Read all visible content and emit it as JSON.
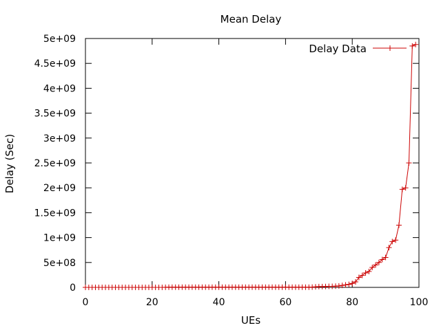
{
  "chart_data": {
    "type": "line",
    "title": "Mean Delay",
    "xlabel": "UEs",
    "ylabel": "Delay (Sec)",
    "xlim": [
      0,
      100
    ],
    "ylim": [
      0,
      5000000000
    ],
    "x_ticks": [
      0,
      20,
      40,
      60,
      80,
      100
    ],
    "x_tick_labels": [
      "0",
      "20",
      "40",
      "60",
      "80",
      "100"
    ],
    "y_ticks": [
      0,
      500000000,
      1000000000,
      1500000000,
      2000000000,
      2500000000,
      3000000000,
      3500000000,
      4000000000,
      4500000000,
      5000000000
    ],
    "y_tick_labels": [
      "0",
      "5e+08",
      "1e+09",
      "1.5e+09",
      "2e+09",
      "2.5e+09",
      "3e+09",
      "3.5e+09",
      "4e+09",
      "4.5e+09",
      "5e+09"
    ],
    "grid": false,
    "legend_position": "top-right",
    "series": [
      {
        "name": "Delay Data",
        "color": "#cc0000",
        "marker": "plus",
        "x": [
          0,
          1,
          2,
          3,
          4,
          5,
          6,
          7,
          8,
          9,
          10,
          11,
          12,
          13,
          14,
          15,
          16,
          17,
          18,
          19,
          20,
          21,
          22,
          23,
          24,
          25,
          26,
          27,
          28,
          29,
          30,
          31,
          32,
          33,
          34,
          35,
          36,
          37,
          38,
          39,
          40,
          41,
          42,
          43,
          44,
          45,
          46,
          47,
          48,
          49,
          50,
          51,
          52,
          53,
          54,
          55,
          56,
          57,
          58,
          59,
          60,
          61,
          62,
          63,
          64,
          65,
          66,
          67,
          68,
          69,
          70,
          71,
          72,
          73,
          74,
          75,
          76,
          77,
          78,
          79,
          80,
          81,
          82,
          83,
          84,
          85,
          86,
          87,
          88,
          89,
          90,
          91,
          92,
          93,
          94,
          95,
          96,
          97,
          98,
          99
        ],
        "values": [
          0,
          0,
          0,
          0,
          0,
          0,
          0,
          0,
          0,
          0,
          0,
          0,
          0,
          0,
          0,
          0,
          0,
          0,
          0,
          0,
          0,
          0,
          0,
          0,
          2000000,
          3000000,
          3000000,
          3000000,
          3000000,
          3000000,
          3000000,
          3000000,
          3000000,
          3000000,
          3000000,
          3000000,
          3000000,
          3000000,
          3000000,
          3000000,
          3000000,
          3000000,
          3000000,
          3000000,
          3000000,
          3000000,
          3000000,
          3000000,
          3000000,
          3000000,
          3000000,
          3000000,
          3000000,
          3000000,
          3000000,
          3000000,
          3000000,
          3000000,
          3000000,
          3000000,
          3000000,
          3000000,
          3000000,
          3000000,
          3000000,
          3000000,
          3000000,
          3000000,
          5000000,
          10000000,
          15000000,
          15000000,
          18000000,
          20000000,
          20000000,
          25000000,
          30000000,
          40000000,
          50000000,
          60000000,
          80000000,
          110000000,
          200000000,
          240000000,
          290000000,
          320000000,
          400000000,
          450000000,
          500000000,
          560000000,
          600000000,
          800000000,
          920000000,
          950000000,
          1250000000,
          1970000000,
          2000000000,
          2500000000,
          4850000000,
          4880000000
        ]
      }
    ]
  }
}
